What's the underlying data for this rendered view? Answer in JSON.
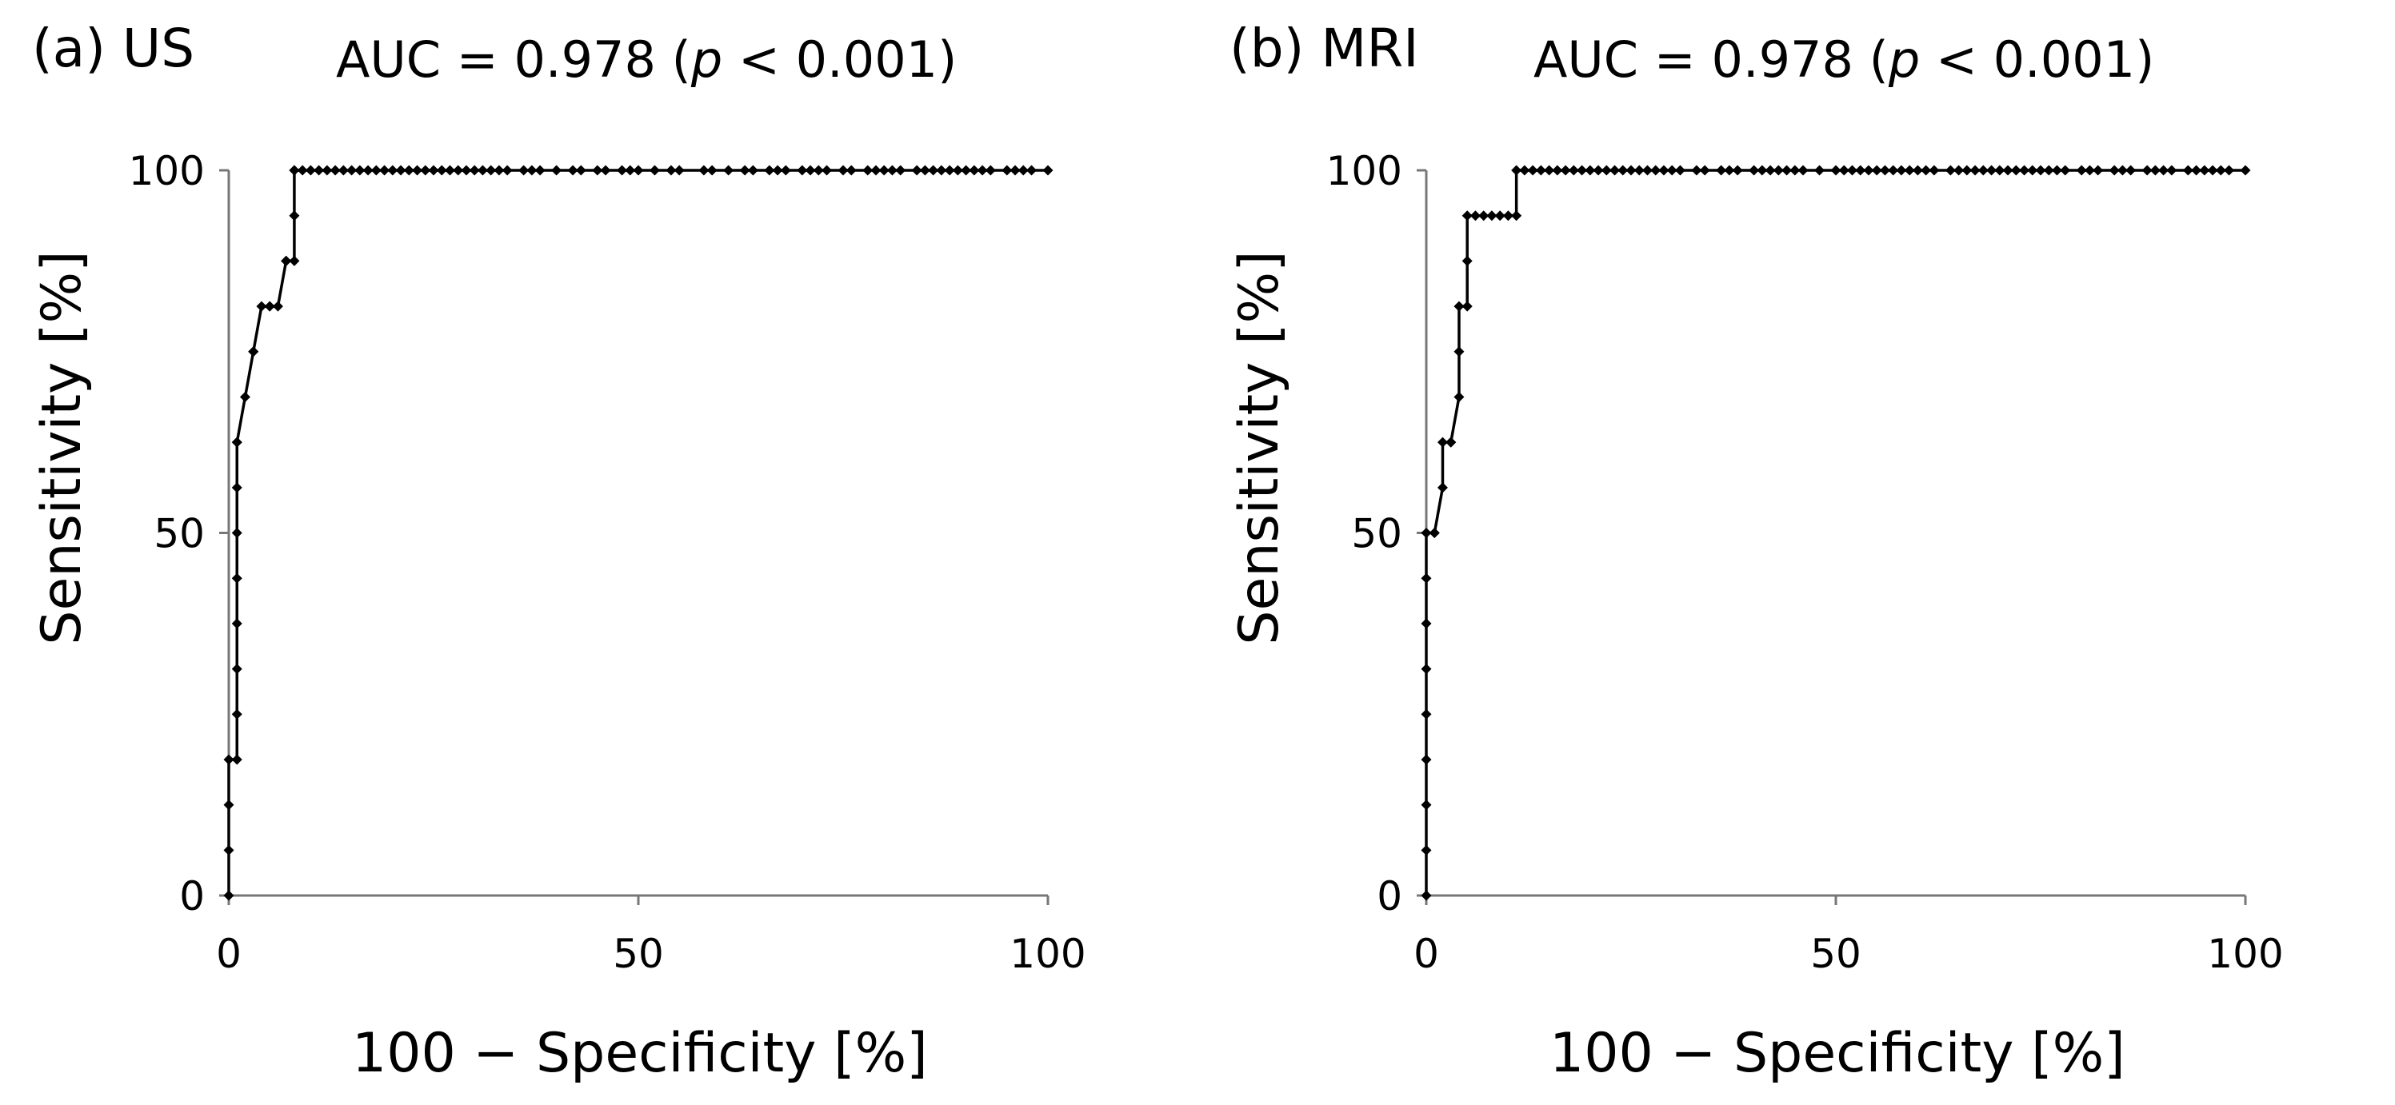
{
  "chart_data": [
    {
      "type": "line",
      "panel_label": "(a) US",
      "auc_text": "AUC = 0.978",
      "p_open": "(",
      "p_symbol": "p",
      "p_rest": "< 0.001)",
      "xlabel": "100 − Specificity [%]",
      "ylabel": "Sensitivity [%]",
      "xlim": [
        0,
        100
      ],
      "ylim": [
        0,
        100
      ],
      "xticks": [
        0,
        50,
        100
      ],
      "yticks": [
        0,
        50,
        100
      ],
      "series": [
        {
          "name": "US",
          "marker": "diamond",
          "x": [
            0,
            0,
            0,
            0,
            1,
            1,
            1,
            1,
            1,
            1,
            1,
            1,
            1,
            2,
            3,
            3,
            4,
            5,
            5,
            6,
            7,
            7,
            7,
            8,
            8,
            8,
            8,
            9,
            10,
            11,
            12,
            13,
            14,
            15,
            16,
            17,
            18,
            19,
            20,
            21,
            22,
            23,
            24,
            25,
            26,
            27,
            28,
            29,
            30,
            31,
            32,
            33,
            34,
            36,
            37,
            38,
            40,
            42,
            43,
            45,
            46,
            48,
            49,
            50,
            52,
            54,
            55,
            58,
            59,
            61,
            63,
            64,
            66,
            67,
            68,
            70,
            71,
            72,
            73,
            75,
            76,
            78,
            79,
            80,
            81,
            82,
            84,
            85,
            86,
            87,
            88,
            89,
            90,
            91,
            92,
            93,
            95,
            96,
            97,
            98,
            100
          ],
          "y": [
            0,
            6.25,
            12.5,
            18.75,
            18.75,
            25,
            31.25,
            37.5,
            43.75,
            50,
            56.25,
            62.5,
            62.5,
            68.75,
            75,
            75,
            81.25,
            81.25,
            81.25,
            81.25,
            87.5,
            87.5,
            87.5,
            87.5,
            93.75,
            100,
            100,
            100,
            100,
            100,
            100,
            100,
            100,
            100,
            100,
            100,
            100,
            100,
            100,
            100,
            100,
            100,
            100,
            100,
            100,
            100,
            100,
            100,
            100,
            100,
            100,
            100,
            100,
            100,
            100,
            100,
            100,
            100,
            100,
            100,
            100,
            100,
            100,
            100,
            100,
            100,
            100,
            100,
            100,
            100,
            100,
            100,
            100,
            100,
            100,
            100,
            100,
            100,
            100,
            100,
            100,
            100,
            100,
            100,
            100,
            100,
            100,
            100,
            100,
            100,
            100,
            100,
            100,
            100,
            100,
            100,
            100,
            100,
            100,
            100,
            100
          ]
        }
      ]
    },
    {
      "type": "line",
      "panel_label": "(b) MRI",
      "auc_text": "AUC = 0.978",
      "p_open": "(",
      "p_symbol": "p",
      "p_rest": "< 0.001)",
      "xlabel": "100 − Specificity [%]",
      "ylabel": "Sensitivity [%]",
      "xlim": [
        0,
        100
      ],
      "ylim": [
        0,
        100
      ],
      "xticks": [
        0,
        50,
        100
      ],
      "yticks": [
        0,
        50,
        100
      ],
      "series": [
        {
          "name": "MRI",
          "marker": "diamond",
          "x": [
            0,
            0,
            0,
            0,
            0,
            0,
            0,
            0,
            0,
            1,
            1,
            2,
            2,
            3,
            3,
            3,
            4,
            4,
            4,
            5,
            5,
            5,
            6,
            7,
            8,
            9,
            10,
            11,
            11,
            12,
            13,
            14,
            15,
            16,
            17,
            18,
            19,
            20,
            21,
            22,
            23,
            24,
            25,
            26,
            27,
            28,
            29,
            30,
            31,
            33,
            34,
            36,
            37,
            38,
            40,
            41,
            42,
            43,
            44,
            45,
            46,
            48,
            50,
            51,
            52,
            53,
            54,
            55,
            56,
            57,
            58,
            59,
            60,
            61,
            62,
            64,
            65,
            66,
            67,
            68,
            69,
            70,
            71,
            72,
            73,
            74,
            75,
            76,
            77,
            78,
            80,
            81,
            82,
            84,
            85,
            86,
            88,
            89,
            90,
            91,
            93,
            94,
            95,
            96,
            97,
            98,
            100
          ],
          "y": [
            0,
            6.25,
            12.5,
            18.75,
            25,
            31.25,
            37.5,
            43.75,
            50,
            50,
            50,
            56.25,
            62.5,
            62.5,
            62.5,
            62.5,
            68.75,
            75,
            81.25,
            81.25,
            87.5,
            93.75,
            93.75,
            93.75,
            93.75,
            93.75,
            93.75,
            93.75,
            100,
            100,
            100,
            100,
            100,
            100,
            100,
            100,
            100,
            100,
            100,
            100,
            100,
            100,
            100,
            100,
            100,
            100,
            100,
            100,
            100,
            100,
            100,
            100,
            100,
            100,
            100,
            100,
            100,
            100,
            100,
            100,
            100,
            100,
            100,
            100,
            100,
            100,
            100,
            100,
            100,
            100,
            100,
            100,
            100,
            100,
            100,
            100,
            100,
            100,
            100,
            100,
            100,
            100,
            100,
            100,
            100,
            100,
            100,
            100,
            100,
            100,
            100,
            100,
            100,
            100,
            100,
            100,
            100,
            100,
            100,
            100,
            100,
            100,
            100,
            100,
            100,
            100,
            100
          ]
        }
      ]
    }
  ]
}
